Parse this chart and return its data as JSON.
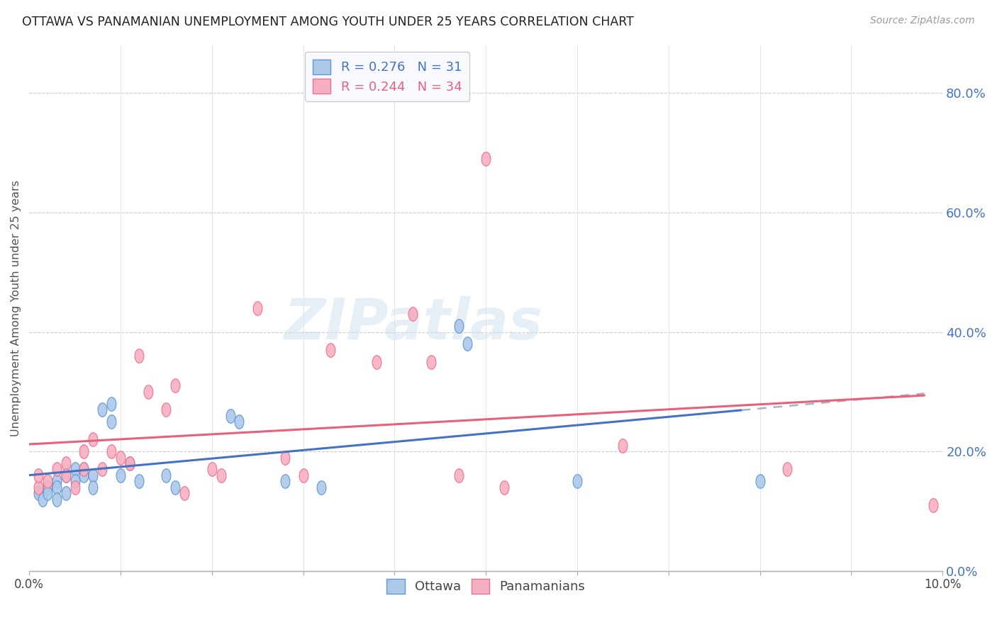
{
  "title": "OTTAWA VS PANAMANIAN UNEMPLOYMENT AMONG YOUTH UNDER 25 YEARS CORRELATION CHART",
  "source": "Source: ZipAtlas.com",
  "ylabel": "Unemployment Among Youth under 25 years",
  "xlim": [
    0.0,
    0.1
  ],
  "ylim": [
    0.0,
    0.88
  ],
  "xticks": [
    0.0,
    0.01,
    0.02,
    0.03,
    0.04,
    0.05,
    0.06,
    0.07,
    0.08,
    0.09,
    0.1
  ],
  "xtick_labels": [
    "0.0%",
    "",
    "",
    "",
    "",
    "",
    "",
    "",
    "",
    "",
    "10.0%"
  ],
  "ytick_positions_right": [
    0.0,
    0.2,
    0.4,
    0.6,
    0.8
  ],
  "ytick_labels_right": [
    "0.0%",
    "20.0%",
    "40.0%",
    "60.0%",
    "80.0%"
  ],
  "ottawa_color": "#adc8e8",
  "panama_color": "#f5afc0",
  "ottawa_edge_color": "#5b9bd5",
  "panama_edge_color": "#f07090",
  "ottawa_line_color": "#4472c4",
  "panama_line_color": "#e8607a",
  "dash_line_color": "#a0b4c8",
  "ottawa_R": 0.276,
  "ottawa_N": 31,
  "panama_R": 0.244,
  "panama_N": 34,
  "watermark_text": "ZIPatlas",
  "ottawa_scatter_x": [
    0.001,
    0.0015,
    0.002,
    0.002,
    0.003,
    0.003,
    0.003,
    0.004,
    0.004,
    0.005,
    0.005,
    0.006,
    0.006,
    0.007,
    0.007,
    0.008,
    0.009,
    0.009,
    0.01,
    0.011,
    0.012,
    0.015,
    0.016,
    0.022,
    0.023,
    0.028,
    0.032,
    0.047,
    0.048,
    0.06,
    0.08
  ],
  "ottawa_scatter_y": [
    0.13,
    0.12,
    0.14,
    0.13,
    0.15,
    0.14,
    0.12,
    0.16,
    0.13,
    0.17,
    0.15,
    0.17,
    0.16,
    0.16,
    0.14,
    0.27,
    0.25,
    0.28,
    0.16,
    0.18,
    0.15,
    0.16,
    0.14,
    0.26,
    0.25,
    0.15,
    0.14,
    0.41,
    0.38,
    0.15,
    0.15
  ],
  "panama_scatter_x": [
    0.001,
    0.001,
    0.002,
    0.003,
    0.004,
    0.004,
    0.005,
    0.006,
    0.006,
    0.007,
    0.008,
    0.009,
    0.01,
    0.011,
    0.012,
    0.013,
    0.015,
    0.016,
    0.017,
    0.02,
    0.021,
    0.025,
    0.028,
    0.03,
    0.033,
    0.038,
    0.042,
    0.044,
    0.047,
    0.05,
    0.052,
    0.065,
    0.083,
    0.099
  ],
  "panama_scatter_y": [
    0.14,
    0.16,
    0.15,
    0.17,
    0.18,
    0.16,
    0.14,
    0.2,
    0.17,
    0.22,
    0.17,
    0.2,
    0.19,
    0.18,
    0.36,
    0.3,
    0.27,
    0.31,
    0.13,
    0.17,
    0.16,
    0.44,
    0.19,
    0.16,
    0.37,
    0.35,
    0.43,
    0.35,
    0.16,
    0.69,
    0.14,
    0.21,
    0.17,
    0.11
  ]
}
